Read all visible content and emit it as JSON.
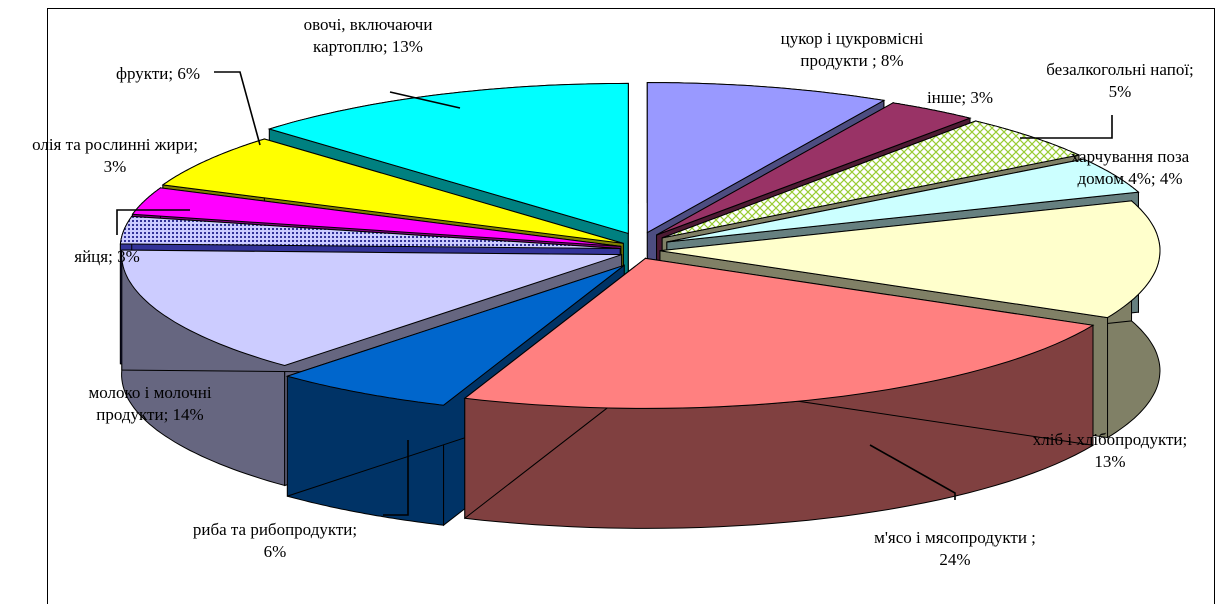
{
  "chart_data": {
    "type": "pie",
    "title": "",
    "series": [
      {
        "name": "",
        "slices": [
          {
            "key": "sugar",
            "label": [
              "цукор і цукровмісні",
              "продукти ; 8%"
            ],
            "value": 8,
            "color": "#9999ff",
            "side": "#4d4d80"
          },
          {
            "key": "other",
            "label": [
              "інше; 3%"
            ],
            "value": 3,
            "color": "#993366",
            "side": "#4d1a33"
          },
          {
            "key": "drinks",
            "label": [
              "безалкогольні напої;",
              "5%"
            ],
            "value": 5,
            "color": "#ffffff",
            "side": "#808066",
            "pattern": "crosshatch"
          },
          {
            "key": "eating_out",
            "label": [
              "харчування поза",
              "домом 4%; 4%"
            ],
            "value": 4,
            "color": "#ccffff",
            "side": "#668080"
          },
          {
            "key": "bread",
            "label": [
              "хліб і хлібопродукти;",
              "13%"
            ],
            "value": 13,
            "color": "#ffffcc",
            "side": "#808066"
          },
          {
            "key": "meat",
            "label": [
              "м'ясо і мясопродукти ;",
              "24%"
            ],
            "value": 24,
            "color": "#ff8080",
            "side": "#804040"
          },
          {
            "key": "fish",
            "label": [
              "риба та рибопродукти;",
              "6%"
            ],
            "value": 6,
            "color": "#0066cc",
            "side": "#003366"
          },
          {
            "key": "milk",
            "label": [
              "молоко і молочні",
              "продукти; 14%"
            ],
            "value": 14,
            "color": "#ccccff",
            "side": "#666680"
          },
          {
            "key": "eggs",
            "label": [
              "яйця; 3%"
            ],
            "value": 3,
            "color": "#ccccff",
            "side": "#333399",
            "pattern": "dots"
          },
          {
            "key": "oil",
            "label": [
              "олія та рослинні жири;",
              "3%"
            ],
            "value": 3,
            "color": "#ff00ff",
            "side": "#800080"
          },
          {
            "key": "fruit",
            "label": [
              "фрукти; 6%"
            ],
            "value": 6,
            "color": "#ffff00",
            "side": "#808000"
          },
          {
            "key": "veg",
            "label": [
              "овочі, включаючи",
              "картоплю; 13%"
            ],
            "value": 13,
            "color": "#00ffff",
            "side": "#008080"
          }
        ]
      }
    ]
  }
}
